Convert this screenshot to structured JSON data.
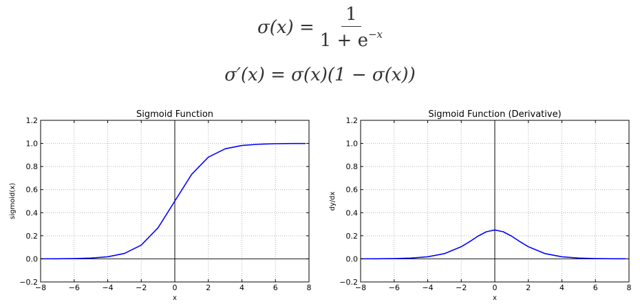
{
  "formulas": {
    "sigmoid": {
      "lhs": "σ(x) =",
      "numerator": "1",
      "denominator_base": "1 + e",
      "denominator_exp": "−x"
    },
    "derivative": {
      "text": "σ′(x) = σ(x)(1 − σ(x))"
    }
  },
  "chart_data": [
    {
      "type": "line",
      "title": "Sigmoid Function",
      "xlabel": "x",
      "ylabel": "sigmoid(x)",
      "xlim": [
        -8,
        8
      ],
      "ylim": [
        -0.2,
        1.2
      ],
      "x_ticks": [
        "−8",
        "−6",
        "−4",
        "−2",
        "0",
        "2",
        "4",
        "6",
        "8"
      ],
      "y_ticks": [
        "−0.2",
        "0.0",
        "0.2",
        "0.4",
        "0.6",
        "0.8",
        "1.0",
        "1.2"
      ],
      "grid": true,
      "series": [
        {
          "color": "#0000ff",
          "x": [
            -8,
            -7,
            -6,
            -5,
            -4,
            -3,
            -2,
            -1,
            0,
            1,
            2,
            3,
            4,
            5,
            6,
            7,
            7.8
          ],
          "y": [
            0.0003,
            0.0009,
            0.0025,
            0.0067,
            0.018,
            0.047,
            0.119,
            0.269,
            0.5,
            0.731,
            0.881,
            0.953,
            0.982,
            0.993,
            0.9975,
            0.9991,
            0.9996
          ]
        }
      ]
    },
    {
      "type": "line",
      "title": "Sigmoid Function (Derivative)",
      "xlabel": "x",
      "ylabel": "dy/dx",
      "xlim": [
        -8,
        8
      ],
      "ylim": [
        -0.2,
        1.2
      ],
      "x_ticks": [
        "−8",
        "−6",
        "−4",
        "−2",
        "0",
        "2",
        "4",
        "6",
        "8"
      ],
      "y_ticks": [
        "−0.2",
        "0.0",
        "0.2",
        "0.4",
        "0.6",
        "0.8",
        "1.0",
        "1.2"
      ],
      "grid": true,
      "series": [
        {
          "color": "#0000ff",
          "x": [
            -8,
            -7,
            -6,
            -5,
            -4,
            -3,
            -2,
            -1.5,
            -1,
            -0.5,
            0,
            0.5,
            1,
            1.5,
            2,
            3,
            4,
            5,
            6,
            7,
            7.8
          ],
          "y": [
            0.0003,
            0.0009,
            0.0025,
            0.0066,
            0.0177,
            0.0452,
            0.105,
            0.149,
            0.197,
            0.235,
            0.25,
            0.235,
            0.197,
            0.149,
            0.105,
            0.0452,
            0.0177,
            0.0066,
            0.0025,
            0.0009,
            0.0004
          ]
        }
      ]
    }
  ]
}
